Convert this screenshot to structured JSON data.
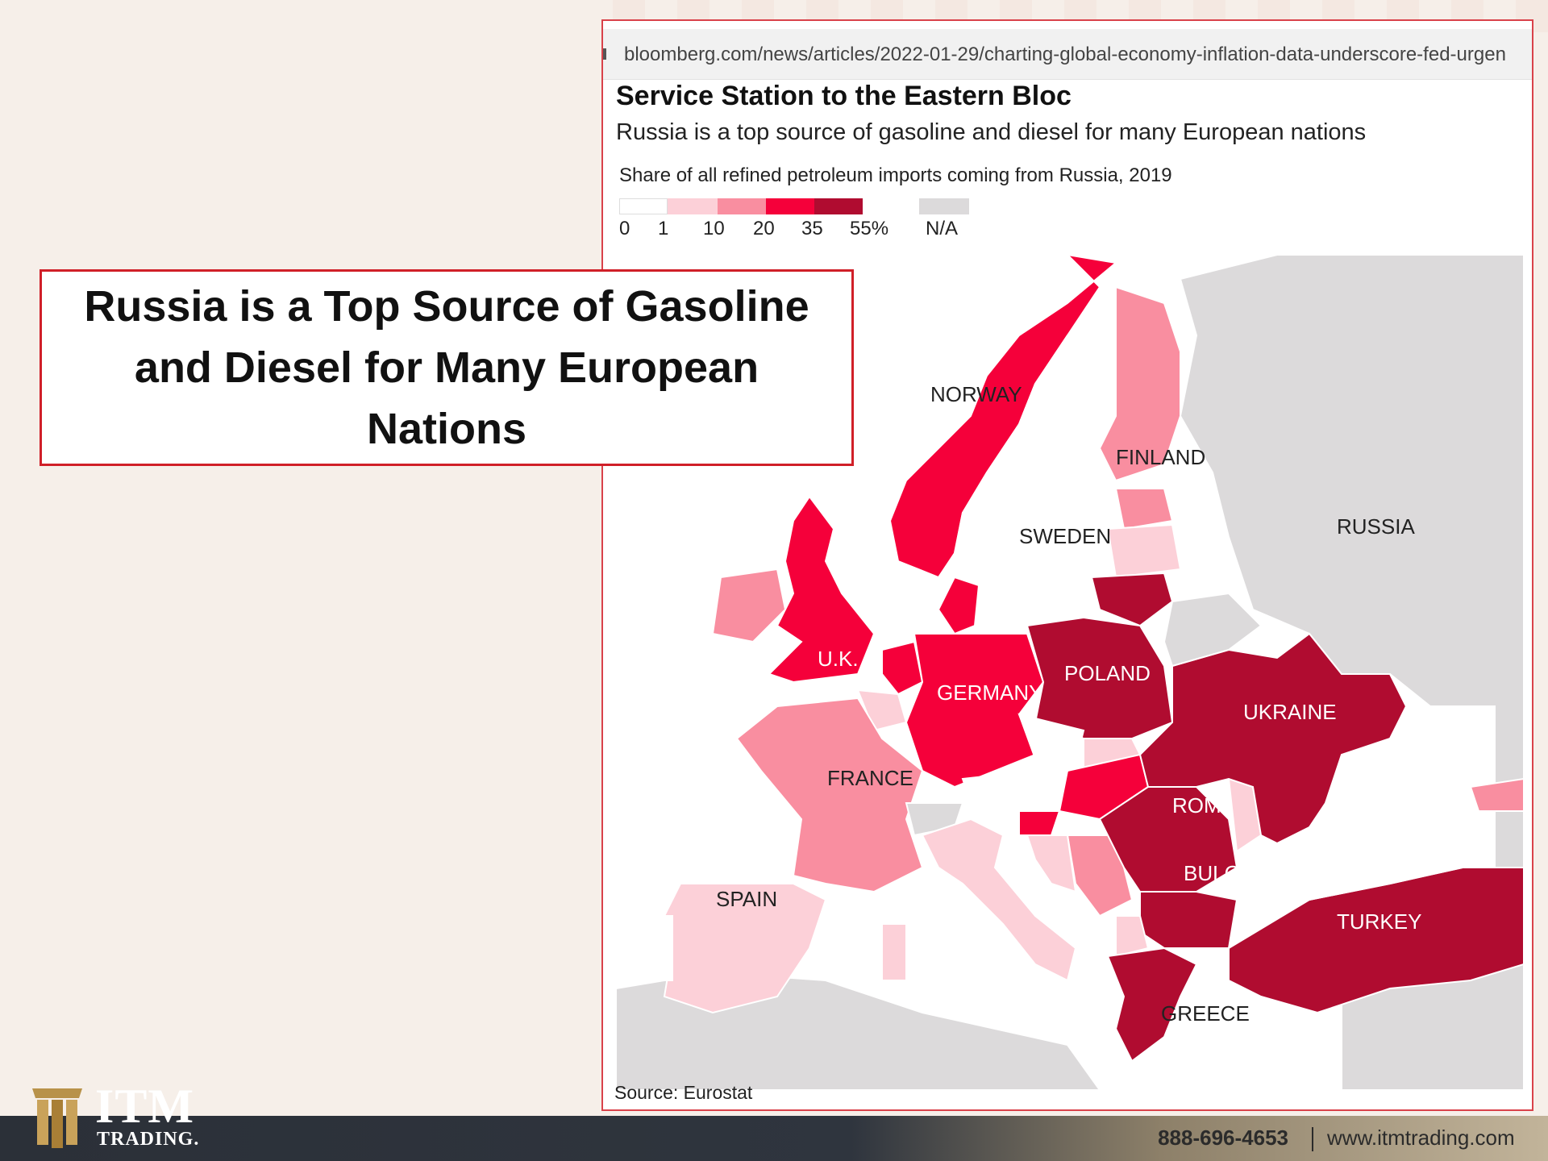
{
  "browser": {
    "url": "bloomberg.com/news/articles/2022-01-29/charting-global-economy-inflation-data-underscore-fed-urgen"
  },
  "chart": {
    "title": "Service Station to the Eastern Bloc",
    "subtitle": "Russia is a top source of gasoline and diesel for many European nations",
    "legend_title": "Share of all refined petroleum imports coming from Russia, 2019",
    "source": "Source: Eurostat"
  },
  "chart_data": {
    "type": "choropleth",
    "legend": {
      "bins": [
        "0",
        "1",
        "10",
        "20",
        "35",
        "55%"
      ],
      "na_label": "N/A",
      "colors": [
        "#ffffff",
        "#fcd0d8",
        "#f98ea0",
        "#f5003a",
        "#b00c30"
      ],
      "na_color": "#dcdadb"
    },
    "labels": [
      {
        "name": "NORWAY",
        "bin": "20-35"
      },
      {
        "name": "FINLAND",
        "bin": "10-20"
      },
      {
        "name": "SWEDEN",
        "bin": "0-1"
      },
      {
        "name": "RUSSIA",
        "bin": "N/A"
      },
      {
        "name": "U.K.",
        "bin": "20-35"
      },
      {
        "name": "GERMANY",
        "bin": "20-35"
      },
      {
        "name": "POLAND",
        "bin": "35-55"
      },
      {
        "name": "UKRAINE",
        "bin": "35-55"
      },
      {
        "name": "FRANCE",
        "bin": "10-20"
      },
      {
        "name": "ROM.",
        "bin": "35-55"
      },
      {
        "name": "BULG.",
        "bin": "35-55"
      },
      {
        "name": "SPAIN",
        "bin": "1-10"
      },
      {
        "name": "TURKEY",
        "bin": "35-55"
      },
      {
        "name": "GREECE",
        "bin": "35-55"
      }
    ]
  },
  "callout": {
    "text": "Russia is a Top Source of Gasoline and Diesel for Many European Nations"
  },
  "footer": {
    "brand": "ITM",
    "brand_sub": "TRADING.",
    "phone": "888-696-4653",
    "website": "www.itmtrading.com"
  }
}
